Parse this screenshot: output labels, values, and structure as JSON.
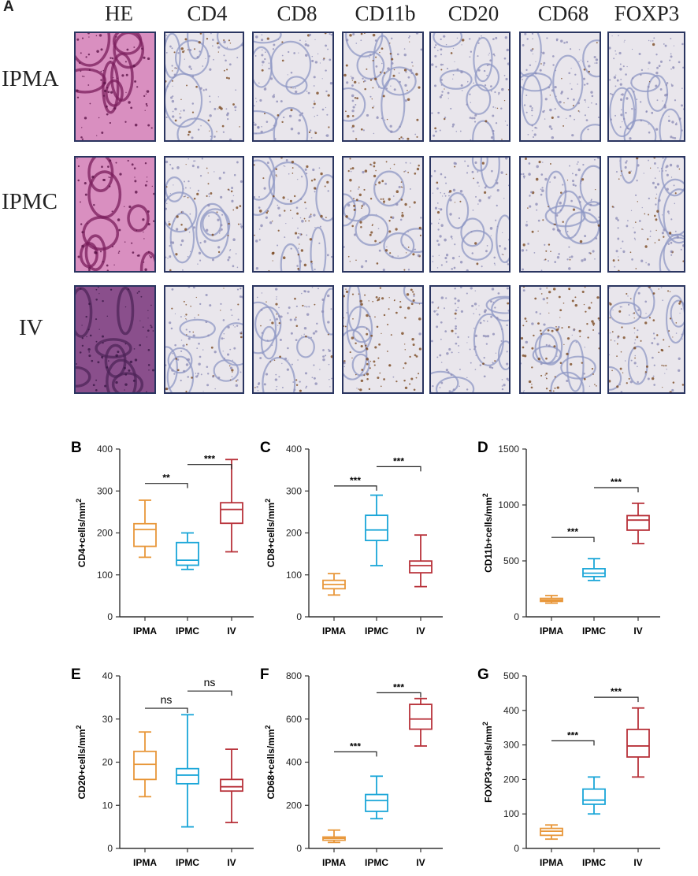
{
  "panel_a": {
    "label": "A",
    "stains": [
      "HE",
      "CD4",
      "CD8",
      "CD11b",
      "CD20",
      "CD68",
      "FOXP3"
    ],
    "rows": [
      "IPMA",
      "IPMC",
      "IV"
    ]
  },
  "colors": {
    "IPMA": "#e8973a",
    "IPMC": "#1aa6d8",
    "IV": "#b8323a"
  },
  "chart_data": [
    {
      "panel": "B",
      "type": "box",
      "ylabel": "CD4+cells/mm",
      "ylabel_sup": "2",
      "categories": [
        "IPMA",
        "IPMC",
        "IV"
      ],
      "ylim": [
        0,
        400
      ],
      "yticks": [
        0,
        100,
        200,
        300,
        400
      ],
      "series": [
        {
          "category": "IPMA",
          "min": 142,
          "q1": 168,
          "median": 208,
          "q3": 222,
          "max": 278
        },
        {
          "category": "IPMC",
          "min": 113,
          "q1": 123,
          "median": 135,
          "q3": 177,
          "max": 200
        },
        {
          "category": "IV",
          "min": 155,
          "q1": 223,
          "median": 256,
          "q3": 272,
          "max": 375
        }
      ],
      "comparisons": [
        {
          "from": 0,
          "to": 1,
          "label": "**",
          "y": 318
        },
        {
          "from": 1,
          "to": 2,
          "label": "***",
          "y": 363
        }
      ]
    },
    {
      "panel": "C",
      "type": "box",
      "ylabel": "CD8+cells/mm",
      "ylabel_sup": "2",
      "categories": [
        "IPMA",
        "IPMC",
        "IV"
      ],
      "ylim": [
        0,
        400
      ],
      "yticks": [
        0,
        100,
        200,
        300,
        400
      ],
      "series": [
        {
          "category": "IPMA",
          "min": 52,
          "q1": 67,
          "median": 77,
          "q3": 87,
          "max": 103
        },
        {
          "category": "IPMC",
          "min": 122,
          "q1": 182,
          "median": 207,
          "q3": 242,
          "max": 290
        },
        {
          "category": "IV",
          "min": 72,
          "q1": 105,
          "median": 122,
          "q3": 133,
          "max": 195
        }
      ],
      "comparisons": [
        {
          "from": 0,
          "to": 1,
          "label": "***",
          "y": 312
        },
        {
          "from": 1,
          "to": 2,
          "label": "***",
          "y": 358
        }
      ]
    },
    {
      "panel": "D",
      "type": "box",
      "ylabel": "CD11b+cells/mm",
      "ylabel_sup": "2",
      "categories": [
        "IPMA",
        "IPMC",
        "IV"
      ],
      "ylim": [
        0,
        1500
      ],
      "yticks": [
        0,
        500,
        1000,
        1500
      ],
      "series": [
        {
          "category": "IPMA",
          "min": 122,
          "q1": 138,
          "median": 150,
          "q3": 165,
          "max": 190
        },
        {
          "category": "IPMC",
          "min": 325,
          "q1": 360,
          "median": 390,
          "q3": 430,
          "max": 520
        },
        {
          "category": "IV",
          "min": 655,
          "q1": 775,
          "median": 865,
          "q3": 905,
          "max": 1015
        }
      ],
      "comparisons": [
        {
          "from": 0,
          "to": 1,
          "label": "***",
          "y": 710
        },
        {
          "from": 1,
          "to": 2,
          "label": "***",
          "y": 1155
        }
      ]
    },
    {
      "panel": "E",
      "type": "box",
      "ylabel": "CD20+cells/mm",
      "ylabel_sup": "2",
      "categories": [
        "IPMA",
        "IPMC",
        "IV"
      ],
      "ylim": [
        0,
        40
      ],
      "yticks": [
        0,
        10,
        20,
        30,
        40
      ],
      "series": [
        {
          "category": "IPMA",
          "min": 12,
          "q1": 16,
          "median": 19.5,
          "q3": 22.5,
          "max": 27
        },
        {
          "category": "IPMC",
          "min": 5,
          "q1": 15,
          "median": 17,
          "q3": 18.5,
          "max": 31
        },
        {
          "category": "IV",
          "min": 6,
          "q1": 13.3,
          "median": 14.3,
          "q3": 16,
          "max": 23
        }
      ],
      "comparisons": [
        {
          "from": 0,
          "to": 1,
          "label": "ns",
          "y": 32.5
        },
        {
          "from": 1,
          "to": 2,
          "label": "ns",
          "y": 36.5
        }
      ]
    },
    {
      "panel": "F",
      "type": "box",
      "ylabel": "CD68+cells/mm",
      "ylabel_sup": "2",
      "categories": [
        "IPMA",
        "IPMC",
        "IV"
      ],
      "ylim": [
        0,
        800
      ],
      "yticks": [
        0,
        200,
        400,
        600,
        800
      ],
      "series": [
        {
          "category": "IPMA",
          "min": 28,
          "q1": 38,
          "median": 47,
          "q3": 53,
          "max": 85
        },
        {
          "category": "IPMC",
          "min": 138,
          "q1": 172,
          "median": 222,
          "q3": 250,
          "max": 335
        },
        {
          "category": "IV",
          "min": 475,
          "q1": 553,
          "median": 600,
          "q3": 668,
          "max": 695
        }
      ],
      "comparisons": [
        {
          "from": 0,
          "to": 1,
          "label": "***",
          "y": 448
        },
        {
          "from": 1,
          "to": 2,
          "label": "***",
          "y": 722
        }
      ]
    },
    {
      "panel": "G",
      "type": "box",
      "ylabel": "FOXP3+cells/mm",
      "ylabel_sup": "2",
      "categories": [
        "IPMA",
        "IPMC",
        "IV"
      ],
      "ylim": [
        0,
        500
      ],
      "yticks": [
        0,
        100,
        200,
        300,
        400,
        500
      ],
      "series": [
        {
          "category": "IPMA",
          "min": 27,
          "q1": 38,
          "median": 50,
          "q3": 58,
          "max": 68
        },
        {
          "category": "IPMC",
          "min": 100,
          "q1": 128,
          "median": 140,
          "q3": 172,
          "max": 207
        },
        {
          "category": "IV",
          "min": 207,
          "q1": 265,
          "median": 297,
          "q3": 345,
          "max": 407
        }
      ],
      "comparisons": [
        {
          "from": 0,
          "to": 1,
          "label": "***",
          "y": 312
        },
        {
          "from": 1,
          "to": 2,
          "label": "***",
          "y": 438
        }
      ]
    }
  ]
}
